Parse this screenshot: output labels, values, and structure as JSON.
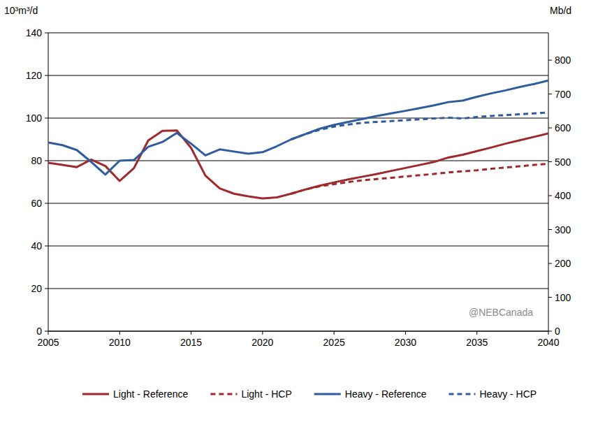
{
  "chart_data": {
    "type": "line",
    "y_label": "10³m³/d",
    "y2_label": "Mb/d",
    "annotations": [
      "@NEBCanada"
    ],
    "x": [
      2005,
      2006,
      2007,
      2008,
      2009,
      2010,
      2011,
      2012,
      2013,
      2014,
      2015,
      2016,
      2017,
      2018,
      2019,
      2020,
      2021,
      2022,
      2023,
      2024,
      2025,
      2026,
      2027,
      2028,
      2029,
      2030,
      2031,
      2032,
      2033,
      2034,
      2035,
      2036,
      2037,
      2038,
      2039,
      2040
    ],
    "xlim": [
      2005,
      2040
    ],
    "xticks": [
      2005,
      2010,
      2015,
      2020,
      2025,
      2030,
      2035,
      2040
    ],
    "ylim": [
      0,
      140
    ],
    "yticks": [
      0,
      20,
      40,
      60,
      80,
      100,
      120,
      140
    ],
    "y2lim": [
      0,
      880.6
    ],
    "y2ticks": [
      0,
      100,
      200,
      300,
      400,
      500,
      600,
      700,
      800
    ],
    "grid": true,
    "legend": "bottom",
    "series": [
      {
        "name": "Light - Reference",
        "color": "#9e2a2b",
        "line_style": "solid",
        "values": [
          79,
          78,
          77,
          80.5,
          77.5,
          70.5,
          76.5,
          89.5,
          94,
          94.2,
          86,
          73,
          67,
          64.5,
          63.3,
          62.3,
          62.8,
          64.5,
          66.5,
          68.3,
          69.8,
          71.2,
          72.5,
          73.8,
          75.2,
          76.6,
          78,
          79.4,
          81.5,
          82.8,
          84.5,
          86.2,
          88,
          89.6,
          91.2,
          92.8
        ]
      },
      {
        "name": "Light - HCP",
        "color": "#9e2a2b",
        "line_style": "dashed",
        "values": [
          null,
          null,
          null,
          null,
          null,
          null,
          null,
          null,
          null,
          null,
          null,
          null,
          null,
          null,
          null,
          null,
          null,
          64.5,
          66.5,
          68,
          69,
          70,
          70.8,
          71.4,
          72,
          72.6,
          73.2,
          73.8,
          74.5,
          75,
          75.5,
          76.2,
          76.8,
          77.4,
          78,
          78.6
        ]
      },
      {
        "name": "Heavy - Reference",
        "color": "#2e5c9e",
        "line_style": "solid",
        "values": [
          88.5,
          87.3,
          85,
          79.5,
          73.5,
          80,
          80.3,
          86.5,
          88.8,
          93,
          88,
          82.5,
          85.3,
          84.3,
          83.3,
          84,
          86.8,
          90,
          92.5,
          95,
          96.8,
          98.2,
          99.6,
          101,
          102.2,
          103.4,
          104.7,
          106,
          107.5,
          108.2,
          110,
          111.6,
          113,
          114.6,
          116,
          117.6
        ]
      },
      {
        "name": "Heavy - HCP",
        "color": "#2e5c9e",
        "line_style": "dashed",
        "values": [
          null,
          null,
          null,
          null,
          null,
          null,
          null,
          null,
          null,
          null,
          null,
          null,
          null,
          null,
          null,
          null,
          null,
          90,
          92.5,
          94.5,
          96,
          97,
          97.8,
          98.2,
          98.6,
          99,
          99.4,
          99.8,
          100.2,
          99.8,
          100.5,
          101,
          101.4,
          101.8,
          102.2,
          102.6
        ]
      }
    ]
  }
}
